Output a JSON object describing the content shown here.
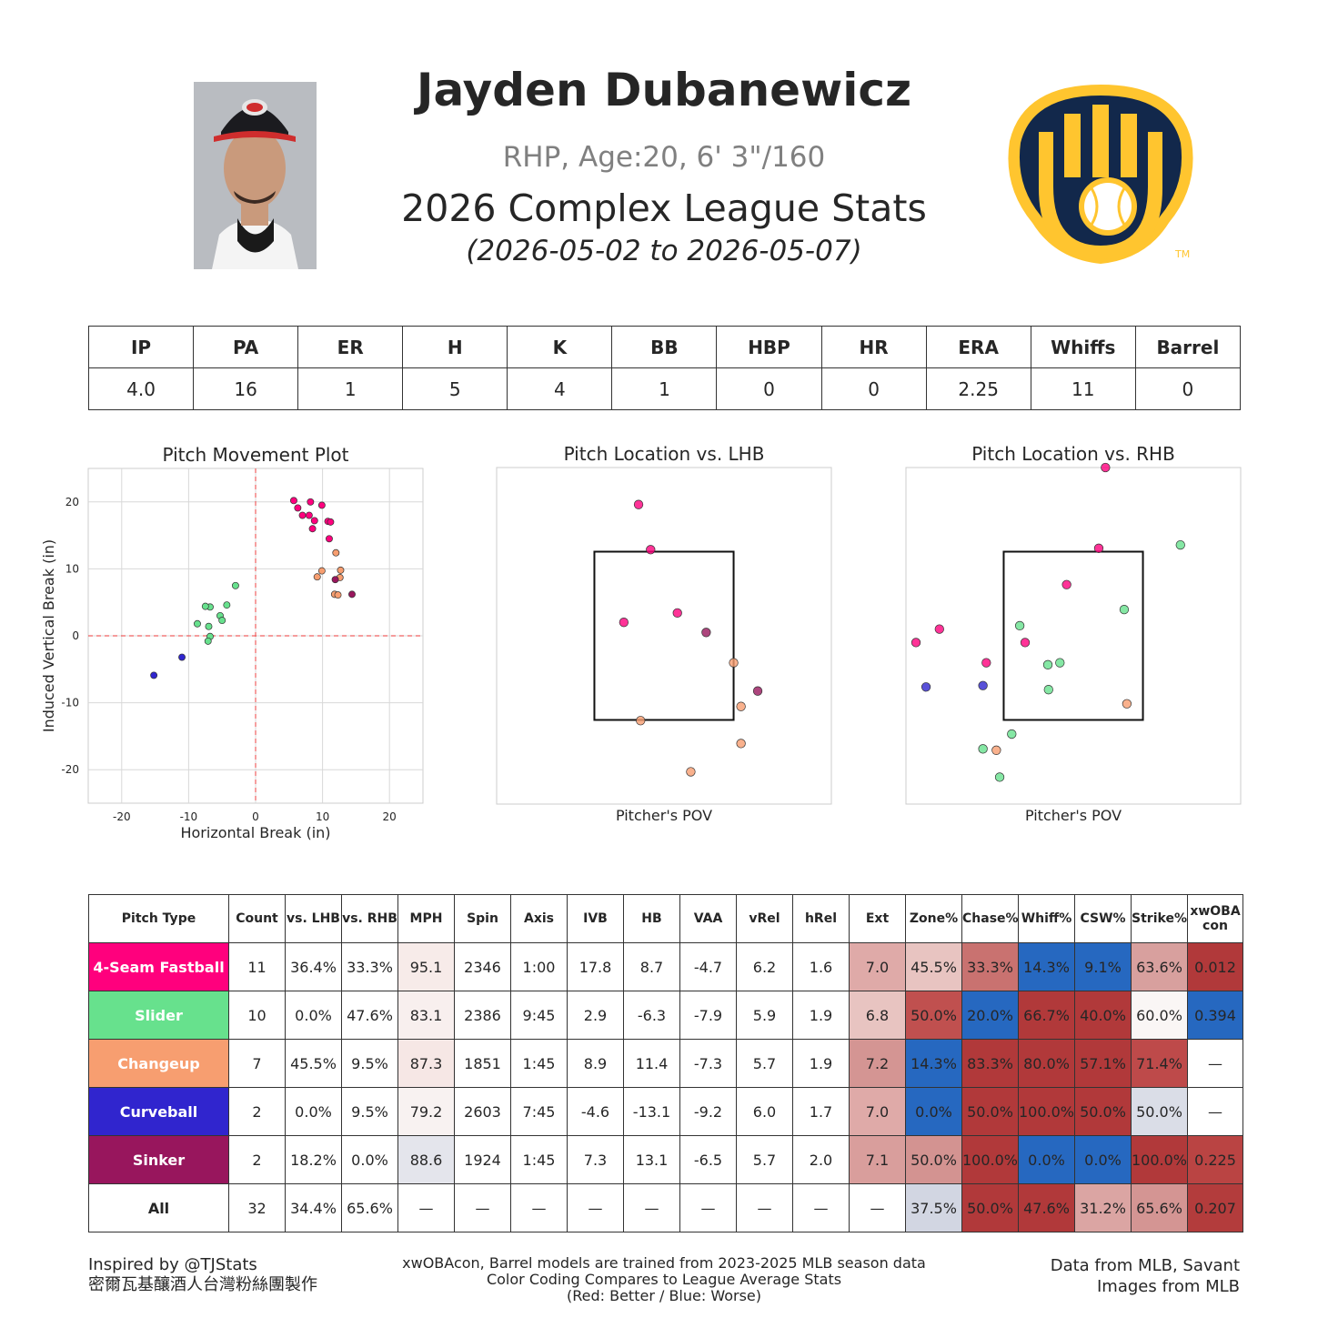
{
  "header": {
    "player_name": "Jayden Dubanewicz",
    "bio": "RHP, Age:20, 6' 3\"/160",
    "stats_title": "2026 Complex League Stats",
    "date_range": "(2026-05-02 to 2026-05-07)",
    "logo_tm": "TM"
  },
  "summary": {
    "headers": [
      "IP",
      "PA",
      "ER",
      "H",
      "K",
      "BB",
      "HBP",
      "HR",
      "ERA",
      "Whiffs",
      "Barrel"
    ],
    "values": [
      "4.0",
      "16",
      "1",
      "5",
      "4",
      "1",
      "0",
      "0",
      "2.25",
      "11",
      "0"
    ]
  },
  "colors": {
    "4-Seam Fastball": "#ff007d",
    "Slider": "#67e18d",
    "Changeup": "#f79e70",
    "Curveball": "#3025ce",
    "Sinker": "#98165d"
  },
  "chart_data": [
    {
      "type": "scatter",
      "title": "Pitch Movement Plot",
      "xlabel": "Horizontal Break (in)",
      "ylabel": "Induced Vertical Break (in)",
      "xlim": [
        -25,
        25
      ],
      "ylim": [
        -25,
        25
      ],
      "xticks": [
        -20,
        -10,
        0,
        10,
        20
      ],
      "yticks": [
        20,
        10,
        0,
        -10,
        -20
      ],
      "grid": true,
      "series": [
        {
          "name": "4-Seam Fastball",
          "points": [
            [
              5.7,
              20.2
            ],
            [
              6.3,
              19.1
            ],
            [
              7.0,
              18.0
            ],
            [
              8.2,
              20.0
            ],
            [
              8.0,
              18.0
            ],
            [
              8.8,
              17.2
            ],
            [
              8.5,
              16.0
            ],
            [
              9.9,
              19.5
            ],
            [
              10.8,
              17.1
            ],
            [
              11.2,
              17.0
            ],
            [
              11.0,
              14.5
            ]
          ]
        },
        {
          "name": "Slider",
          "points": [
            [
              -3.0,
              7.5
            ],
            [
              -4.3,
              4.6
            ],
            [
              -6.8,
              4.3
            ],
            [
              -7.5,
              4.4
            ],
            [
              -5.3,
              3.0
            ],
            [
              -5.0,
              2.3
            ],
            [
              -8.7,
              1.8
            ],
            [
              -7.0,
              1.4
            ],
            [
              -6.8,
              -0.1
            ],
            [
              -7.1,
              -0.8
            ]
          ]
        },
        {
          "name": "Changeup",
          "points": [
            [
              12.0,
              12.4
            ],
            [
              12.7,
              9.8
            ],
            [
              9.9,
              9.7
            ],
            [
              9.2,
              8.8
            ],
            [
              12.6,
              8.7
            ],
            [
              11.8,
              6.2
            ],
            [
              12.3,
              6.1
            ]
          ]
        },
        {
          "name": "Curveball",
          "points": [
            [
              -11.0,
              -3.2
            ],
            [
              -15.2,
              -5.9
            ]
          ]
        },
        {
          "name": "Sinker",
          "points": [
            [
              14.4,
              6.2
            ],
            [
              11.9,
              8.4
            ]
          ]
        }
      ]
    },
    {
      "type": "scatter",
      "title": "Pitch Location vs. LHB",
      "xlabel": "Pitcher's POV",
      "xlim": [
        -2.5,
        2.5
      ],
      "ylim": [
        0,
        5
      ],
      "strike_zone": {
        "x": [
          -1.04,
          1.04
        ],
        "y": [
          1.25,
          3.75
        ]
      },
      "series": [
        {
          "name": "4-Seam Fastball",
          "points": [
            [
              -0.38,
              4.45
            ],
            [
              -0.2,
              3.78
            ],
            [
              -0.6,
              2.7
            ],
            [
              0.2,
              2.84
            ]
          ]
        },
        {
          "name": "Slider",
          "points": []
        },
        {
          "name": "Changeup",
          "points": [
            [
              1.04,
              2.1
            ],
            [
              1.15,
              1.45
            ],
            [
              1.15,
              0.9
            ],
            [
              0.4,
              0.48
            ],
            [
              -0.35,
              1.24
            ]
          ]
        },
        {
          "name": "Curveball",
          "points": []
        },
        {
          "name": "Sinker",
          "points": [
            [
              0.63,
              2.55
            ],
            [
              1.4,
              1.68
            ]
          ]
        }
      ]
    },
    {
      "type": "scatter",
      "title": "Pitch Location vs. RHB",
      "xlabel": "Pitcher's POV",
      "xlim": [
        -2.5,
        2.5
      ],
      "ylim": [
        0,
        5
      ],
      "strike_zone": {
        "x": [
          -1.04,
          1.04
        ],
        "y": [
          1.25,
          3.75
        ]
      },
      "series": [
        {
          "name": "4-Seam Fastball",
          "points": [
            [
              0.48,
              5.0
            ],
            [
              0.38,
              3.8
            ],
            [
              -0.1,
              3.26
            ],
            [
              -2.0,
              2.6
            ],
            [
              -2.35,
              2.4
            ],
            [
              -1.3,
              2.1
            ],
            [
              -0.72,
              2.4
            ]
          ]
        },
        {
          "name": "Slider",
          "points": [
            [
              1.6,
              3.85
            ],
            [
              0.76,
              2.89
            ],
            [
              -0.8,
              2.65
            ],
            [
              -0.2,
              2.1
            ],
            [
              -0.38,
              2.07
            ],
            [
              -0.37,
              1.7
            ],
            [
              -0.92,
              1.04
            ],
            [
              -1.35,
              0.82
            ],
            [
              -1.1,
              0.4
            ]
          ]
        },
        {
          "name": "Changeup",
          "points": [
            [
              0.8,
              1.49
            ],
            [
              -1.15,
              0.8
            ]
          ]
        },
        {
          "name": "Curveball",
          "points": [
            [
              -2.2,
              1.74
            ],
            [
              -1.35,
              1.76
            ]
          ]
        },
        {
          "name": "Sinker",
          "points": []
        }
      ]
    },
    {
      "type": "table",
      "headers": [
        "Pitch Type",
        "Count",
        "vs. LHB",
        "vs. RHB",
        "MPH",
        "Spin",
        "Axis",
        "IVB",
        "HB",
        "VAA",
        "vRel",
        "hRel",
        "Ext",
        "Zone%",
        "Chase%",
        "Whiff%",
        "CSW%",
        "Strike%",
        "xwOBA\ncon"
      ],
      "rows": [
        {
          "label": "4-Seam Fastball",
          "label_color": "#ff007d",
          "cells": [
            "11",
            "36.4%",
            "33.3%",
            "95.1",
            "2346",
            "1:00",
            "17.8",
            "8.7",
            "-4.7",
            "6.2",
            "1.6",
            "7.0",
            "45.5%",
            "33.3%",
            "14.3%",
            "9.1%",
            "63.6%",
            "0.012"
          ],
          "bg": [
            "",
            "",
            "",
            "#f7ebe9",
            "",
            "",
            "",
            "",
            "",
            "",
            "",
            "#dfaaa8",
            "#e8c4c1",
            "#c97270",
            "#2668c0",
            "#2668c0",
            "#d8a09e",
            "#b1393a"
          ]
        },
        {
          "label": "Slider",
          "label_color": "#67e18d",
          "cells": [
            "10",
            "0.0%",
            "47.6%",
            "83.1",
            "2386",
            "9:45",
            "2.9",
            "-6.3",
            "-7.9",
            "5.9",
            "1.9",
            "6.8",
            "50.0%",
            "20.0%",
            "66.7%",
            "40.0%",
            "60.0%",
            "0.394"
          ],
          "bg": [
            "",
            "",
            "",
            "#f8efee",
            "",
            "",
            "",
            "",
            "",
            "",
            "",
            "#e8c4c1",
            "#c0504f",
            "#2668c0",
            "#b1393a",
            "#b1393a",
            "#faf6f5",
            "#2668c0"
          ]
        },
        {
          "label": "Changeup",
          "label_color": "#f79e70",
          "cells": [
            "7",
            "45.5%",
            "9.5%",
            "87.3",
            "1851",
            "1:45",
            "8.9",
            "11.4",
            "-7.3",
            "5.7",
            "1.9",
            "7.2",
            "14.3%",
            "83.3%",
            "80.0%",
            "57.1%",
            "71.4%",
            "—"
          ],
          "bg": [
            "",
            "",
            "",
            "#f6e7e5",
            "",
            "",
            "",
            "",
            "",
            "",
            "",
            "#d49593",
            "#2668c0",
            "#b1393a",
            "#b1393a",
            "#b1393a",
            "#be4a4a",
            ""
          ]
        },
        {
          "label": "Curveball",
          "label_color": "#3025ce",
          "cells": [
            "2",
            "0.0%",
            "9.5%",
            "79.2",
            "2603",
            "7:45",
            "-4.6",
            "-13.1",
            "-9.2",
            "6.0",
            "1.7",
            "7.0",
            "0.0%",
            "50.0%",
            "100.0%",
            "50.0%",
            "50.0%",
            "—"
          ],
          "bg": [
            "",
            "",
            "",
            "#f8f2f1",
            "",
            "",
            "",
            "",
            "",
            "",
            "",
            "#dfaaa8",
            "#2668c0",
            "#b1393a",
            "#b1393a",
            "#b1393a",
            "#dadde7",
            ""
          ]
        },
        {
          "label": "Sinker",
          "label_color": "#98165d",
          "cells": [
            "2",
            "18.2%",
            "0.0%",
            "88.6",
            "1924",
            "1:45",
            "7.3",
            "13.1",
            "-6.5",
            "5.7",
            "2.0",
            "7.1",
            "50.0%",
            "100.0%",
            "0.0%",
            "0.0%",
            "100.0%",
            "0.225"
          ],
          "bg": [
            "",
            "",
            "",
            "#e4e5ec",
            "",
            "",
            "",
            "",
            "",
            "",
            "",
            "#d99e9c",
            "#d39391",
            "#b1393a",
            "#2668c0",
            "#2668c0",
            "#b1393a",
            "#ba4443"
          ]
        },
        {
          "label": "All",
          "label_color": "",
          "cells": [
            "32",
            "34.4%",
            "65.6%",
            "—",
            "—",
            "—",
            "—",
            "—",
            "—",
            "—",
            "—",
            "—",
            "37.5%",
            "50.0%",
            "47.6%",
            "31.2%",
            "65.6%",
            "0.207"
          ],
          "bg": [
            "",
            "",
            "",
            "",
            "",
            "",
            "",
            "",
            "",
            "",
            "",
            "",
            "#d2d6e2",
            "#b1393a",
            "#b1393a",
            "#dba5a3",
            "#d49593",
            "#b33c3c"
          ]
        }
      ]
    }
  ],
  "footer": {
    "left_line1": "Inspired by @TJStats",
    "left_line2": "密爾瓦基釀酒人台灣粉絲團製作",
    "center_line1": "xwOBAcon, Barrel models are trained from 2023-2025 MLB season data",
    "center_line2": "Color Coding Compares to League Average Stats",
    "center_line3": "(Red: Better / Blue: Worse)",
    "right_line1": "Data from MLB, Savant",
    "right_line2": "Images from MLB"
  }
}
